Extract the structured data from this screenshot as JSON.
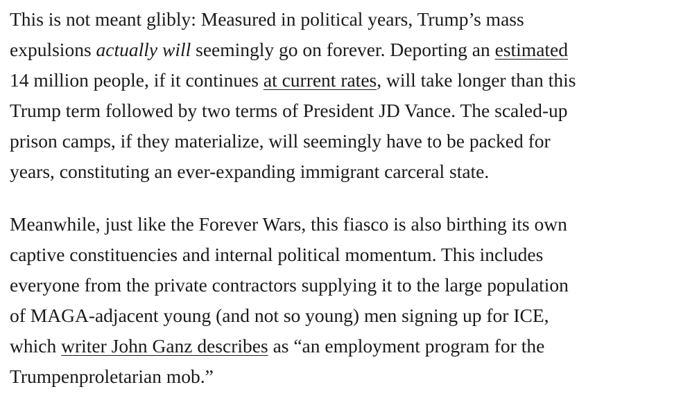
{
  "article": {
    "paragraph_1": {
      "line_1": "This is not meant glibly: Measured in political years, Trump’s mass",
      "line_2_a": "expulsions ",
      "line_2_em": "actually will",
      "line_2_b": " seemingly go on forever. Deporting an ",
      "line_2_link": "estimated",
      "line_3_a": "14 million people, if it continues ",
      "line_3_link": "at current rates",
      "line_3_b": ", will take longer than this",
      "line_4": "Trump term followed by two terms of President JD Vance. The scaled-up",
      "line_5": "prison camps, if they materialize, will seemingly have to be packed for",
      "line_6": "years, constituting an ever-expanding immigrant carceral state."
    },
    "paragraph_2": {
      "line_1": "Meanwhile, just like the Forever Wars, this fiasco is also birthing its own",
      "line_2": "captive constituencies and internal political momentum. This includes",
      "line_3": "everyone from the private contractors supplying it to the large population",
      "line_4": "of MAGA-adjacent young (and not so young) men signing up for ICE,",
      "line_5_a": "which ",
      "line_5_link": "writer John Ganz describes",
      "line_5_b": " as “an employment program for the",
      "line_6": "Trumpenproletarian mob.”"
    }
  }
}
